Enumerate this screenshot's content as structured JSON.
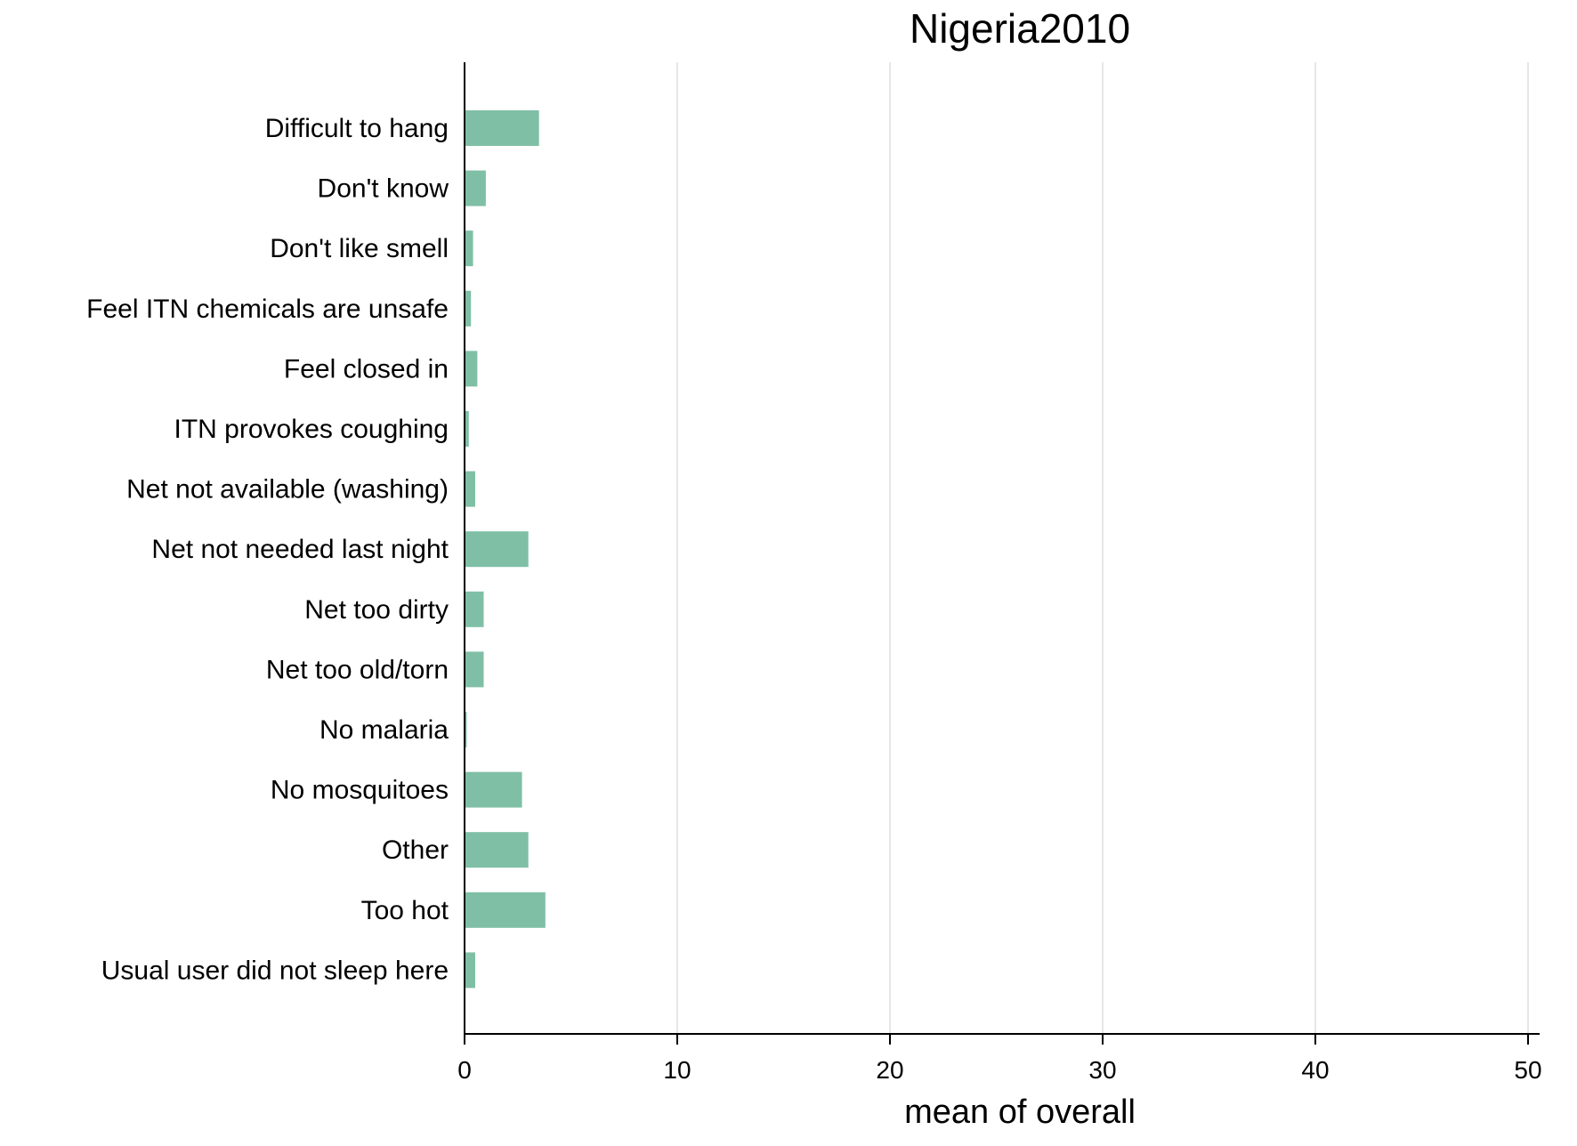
{
  "chart_data": {
    "type": "bar",
    "orientation": "horizontal",
    "title": "Nigeria2010",
    "xlabel": "mean of overall",
    "ylabel": "",
    "xlim": [
      0,
      52
    ],
    "xticks": [
      0,
      10,
      20,
      30,
      40,
      50
    ],
    "xtick_labels": [
      "0",
      "10",
      "20",
      "30",
      "40",
      "50"
    ],
    "grid": "vertical",
    "legend": "none",
    "bar_color": "#7fbfa6",
    "grid_color": "#e6e6e6",
    "categories": [
      "Difficult to hang",
      "Don't know",
      "Don't like smell",
      "Feel ITN chemicals are unsafe",
      "Feel closed in",
      "ITN provokes coughing",
      "Net not available (washing)",
      "Net not needed last night",
      "Net too dirty",
      "Net too old/torn",
      "No malaria",
      "No mosquitoes",
      "Other",
      "Too hot",
      "Usual user did not sleep here"
    ],
    "values": [
      3.5,
      1.0,
      0.4,
      0.3,
      0.6,
      0.2,
      0.5,
      3.0,
      0.9,
      0.9,
      0.1,
      2.7,
      3.0,
      3.8,
      0.5
    ]
  }
}
